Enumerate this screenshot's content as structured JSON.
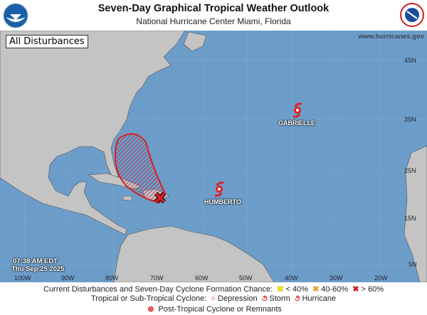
{
  "header": {
    "title": "Seven-Day Graphical Tropical Weather Outlook",
    "subtitle": "National Hurricane Center  Miami, Florida",
    "left_logo": "NOAA",
    "right_logo": "National Weather Service"
  },
  "map": {
    "view_label": "All Disturbances",
    "url": "www.hurricanes.gov",
    "time": "07:38 AM EDT",
    "date": "Thu Sep 25 2025",
    "lat_labels": [
      "45N",
      "35N",
      "25N",
      "15N",
      "5N"
    ],
    "lon_labels": [
      "100W",
      "90W",
      "80W",
      "70W",
      "60W",
      "50W",
      "40W",
      "30W",
      "20W"
    ],
    "colors": {
      "ocean": "#6c9dc9",
      "land": "#c4c4c4",
      "disturbance": "#d62020"
    },
    "storms": [
      {
        "name": "GABRIELLE",
        "type": "hurricane"
      },
      {
        "name": "HUMBERTO",
        "type": "hurricane"
      }
    ],
    "disturbance": {
      "chance": "> 60%",
      "marker": "x-red"
    }
  },
  "legend": {
    "line1_label": "Current Disturbances and Seven-Day Cyclone Formation Chance:",
    "low": "< 40%",
    "mid": "40-60%",
    "high": "> 60%",
    "line2_label": "Tropical or Sub-Tropical Cyclone:",
    "depression": "Depression",
    "storm": "Storm",
    "hurricane": "Hurricane",
    "line3_label": "Post-Tropical Cyclone or Remnants"
  }
}
